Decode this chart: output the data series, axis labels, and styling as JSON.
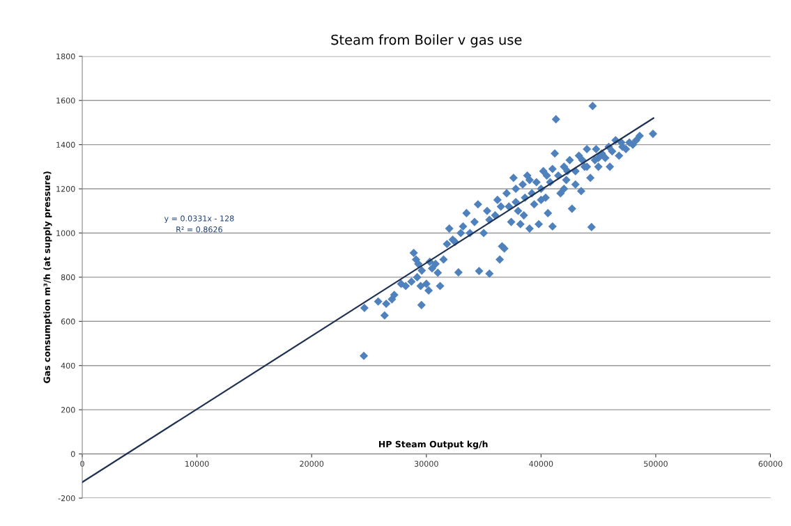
{
  "chart_data": {
    "type": "scatter",
    "title": "Steam from Boiler v gas use",
    "xlabel": "HP Steam Output kg/h",
    "ylabel": "Gas consumption m³/h (at supply pressure)",
    "annotations": [
      "y = 0.0331x - 128\nR² = 0.8626"
    ],
    "xlim": [
      0,
      60000
    ],
    "xticks": [
      0,
      10000,
      20000,
      30000,
      40000,
      50000,
      60000
    ],
    "ylim": [
      -200,
      1800
    ],
    "yticks": [
      -200,
      0,
      200,
      400,
      600,
      800,
      1000,
      1200,
      1400,
      1600,
      1800
    ],
    "grid": "y",
    "legend": false,
    "marker": "diamond",
    "series": [
      {
        "color": "#4f81bd",
        "x": [
          24550,
          24600,
          25800,
          26360,
          26500,
          27000,
          27200,
          27800,
          28200,
          28700,
          28900,
          29100,
          29300,
          29200,
          29500,
          29575,
          29600,
          30000,
          30200,
          30300,
          30500,
          30800,
          31000,
          31200,
          31500,
          31800,
          32000,
          32300,
          32500,
          32800,
          33000,
          33200,
          33500,
          33800,
          34200,
          34500,
          34600,
          35000,
          35300,
          35500,
          35500,
          36000,
          36200,
          36400,
          36600,
          36800,
          37000,
          37200,
          37400,
          37600,
          37800,
          38000,
          38200,
          38400,
          38600,
          38800,
          39000,
          39200,
          39400,
          39600,
          39800,
          40000,
          40200,
          40400,
          40600,
          40800,
          41000,
          41200,
          41300,
          41500,
          41700,
          42000,
          42200,
          42500,
          42700,
          44500,
          43000,
          43300,
          43500,
          43800,
          44000,
          44300,
          44400,
          44700,
          45000,
          45300,
          45600,
          45900,
          46200,
          46500,
          46800,
          47100,
          47400,
          47700,
          48000,
          48300,
          48600,
          49760,
          36500,
          37800,
          39000,
          40000,
          41000,
          42000,
          43000,
          44000,
          45000,
          46000,
          47000,
          38500,
          40500,
          42300,
          43600,
          44800
        ],
        "values": [
          444,
          661,
          690,
          627,
          680,
          700,
          720,
          770,
          760,
          780,
          910,
          880,
          860,
          800,
          760,
          674,
          830,
          770,
          740,
          870,
          840,
          860,
          820,
          760,
          880,
          950,
          1020,
          970,
          960,
          822,
          1000,
          1030,
          1090,
          1000,
          1050,
          1130,
          828,
          1000,
          1100,
          1060,
          816,
          1080,
          1150,
          880,
          940,
          930,
          1180,
          1120,
          1050,
          1250,
          1200,
          1100,
          1040,
          1220,
          1160,
          1260,
          1020,
          1180,
          1130,
          1230,
          1040,
          1200,
          1280,
          1160,
          1090,
          1230,
          1030,
          1360,
          1515,
          1260,
          1180,
          1300,
          1240,
          1330,
          1110,
          1575,
          1280,
          1350,
          1190,
          1300,
          1380,
          1250,
          1027,
          1330,
          1300,
          1360,
          1340,
          1390,
          1370,
          1420,
          1350,
          1390,
          1380,
          1410,
          1400,
          1420,
          1440,
          1449,
          1120,
          1140,
          1240,
          1150,
          1290,
          1200,
          1220,
          1300,
          1340,
          1300,
          1410,
          1080,
          1260,
          1280,
          1330,
          1380
        ]
      },
      {
        "type": "line",
        "color": "#1f3050",
        "marker": "none",
        "x": [
          0,
          49800
        ],
        "values": [
          -128,
          1520
        ]
      }
    ]
  }
}
